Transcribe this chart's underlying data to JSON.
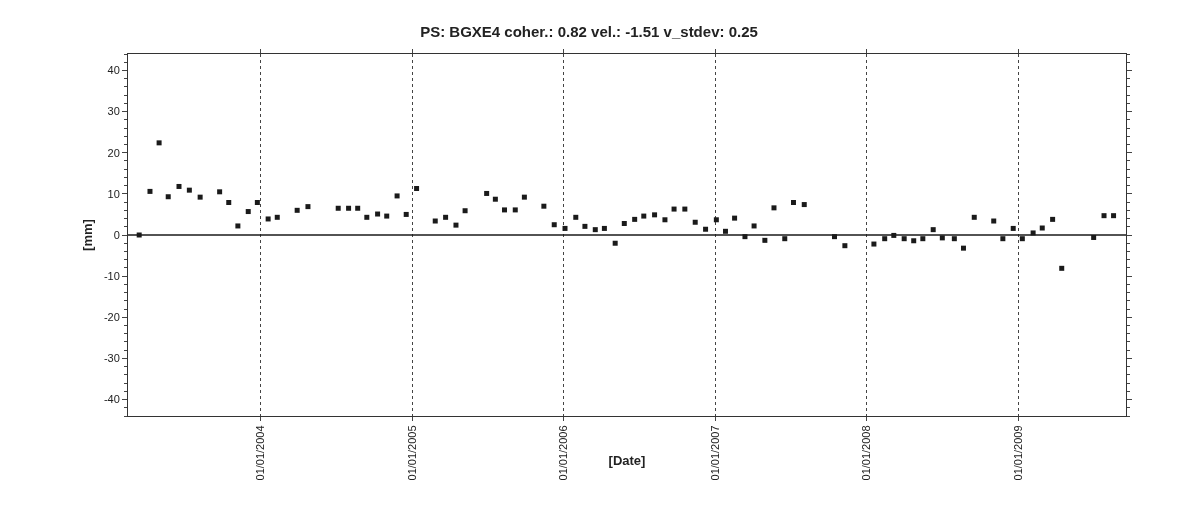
{
  "chart_data": {
    "type": "scatter",
    "title": "PS: BGXE4 coher.: 0.82 vel.: -1.51 v_stdev: 0.25",
    "xlabel": "[Date]",
    "ylabel": "[mm]",
    "x": [
      "2003-03-14",
      "2003-04-09",
      "2003-05-01",
      "2003-05-23",
      "2003-06-18",
      "2003-07-13",
      "2003-08-08",
      "2003-09-24",
      "2003-10-16",
      "2003-11-07",
      "2003-12-02",
      "2003-12-24",
      "2004-01-19",
      "2004-02-10",
      "2004-03-29",
      "2004-04-24",
      "2004-07-06",
      "2004-07-31",
      "2004-08-22",
      "2004-09-13",
      "2004-10-09",
      "2004-10-31",
      "2004-11-25",
      "2004-12-17",
      "2005-01-11",
      "2005-02-25",
      "2005-03-22",
      "2005-04-16",
      "2005-05-08",
      "2005-06-29",
      "2005-07-20",
      "2005-08-11",
      "2005-09-06",
      "2005-09-28",
      "2005-11-14",
      "2005-12-09",
      "2006-01-04",
      "2006-01-30",
      "2006-02-21",
      "2006-03-18",
      "2006-04-09",
      "2006-05-05",
      "2006-05-27",
      "2006-06-21",
      "2006-07-13",
      "2006-08-08",
      "2006-09-02",
      "2006-09-24",
      "2006-10-20",
      "2006-11-14",
      "2006-12-09",
      "2007-01-04",
      "2007-01-26",
      "2007-02-17",
      "2007-03-14",
      "2007-04-05",
      "2007-05-01",
      "2007-05-23",
      "2007-06-18",
      "2007-07-09",
      "2007-08-04",
      "2007-10-16",
      "2007-11-10",
      "2008-01-19",
      "2008-02-14",
      "2008-03-07",
      "2008-04-01",
      "2008-04-24",
      "2008-05-16",
      "2008-06-10",
      "2008-07-02",
      "2008-07-31",
      "2008-08-22",
      "2008-09-17",
      "2008-11-03",
      "2008-11-25",
      "2008-12-20",
      "2009-01-11",
      "2009-02-06",
      "2009-02-28",
      "2009-03-25",
      "2009-04-16",
      "2009-07-02",
      "2009-07-27",
      "2009-08-19"
    ],
    "values": [
      0,
      10.6,
      22.4,
      9.3,
      11.8,
      10.9,
      9.2,
      10.5,
      7.9,
      2.2,
      5.7,
      7.9,
      3.9,
      4.3,
      6.0,
      6.9,
      6.5,
      6.5,
      6.5,
      4.3,
      5.1,
      4.6,
      9.5,
      5.0,
      11.3,
      3.4,
      4.3,
      2.4,
      5.9,
      10.1,
      8.7,
      6.1,
      6.1,
      9.2,
      7.0,
      2.5,
      1.6,
      4.3,
      2.1,
      1.3,
      1.6,
      -2.0,
      2.8,
      3.8,
      4.6,
      4.9,
      3.7,
      6.3,
      6.3,
      3.1,
      1.4,
      3.7,
      0.9,
      4.1,
      -0.4,
      2.2,
      -1.3,
      6.6,
      -0.9,
      7.9,
      7.4,
      -0.4,
      -2.6,
      -2.2,
      -0.9,
      -0.1,
      -0.9,
      -1.4,
      -0.9,
      1.3,
      -0.7,
      -0.9,
      -3.2,
      4.3,
      3.4,
      -0.9,
      1.6,
      -0.9,
      0.5,
      1.7,
      3.8,
      -8.1,
      -0.6,
      4.7,
      4.7
    ],
    "color": "#1a1a1a",
    "marker": "square",
    "grid": "x",
    "xlim": [
      "2003-02-15",
      "2009-09-18"
    ],
    "xticks": [
      {
        "value": "2004-01-01",
        "label": "01/01/2004"
      },
      {
        "value": "2005-01-01",
        "label": "01/01/2005"
      },
      {
        "value": "2006-01-01",
        "label": "01/01/2006"
      },
      {
        "value": "2007-01-01",
        "label": "01/01/2007"
      },
      {
        "value": "2008-01-01",
        "label": "01/01/2008"
      },
      {
        "value": "2009-01-01",
        "label": "01/01/2009"
      }
    ],
    "ylim": [
      -44,
      44
    ],
    "yticks": [
      -40,
      -30,
      -20,
      -10,
      0,
      10,
      20,
      30,
      40
    ],
    "ref_lines": [
      {
        "axis": "y",
        "value": 0,
        "color": "#1a1a1a",
        "line_style": "solid"
      }
    ]
  }
}
